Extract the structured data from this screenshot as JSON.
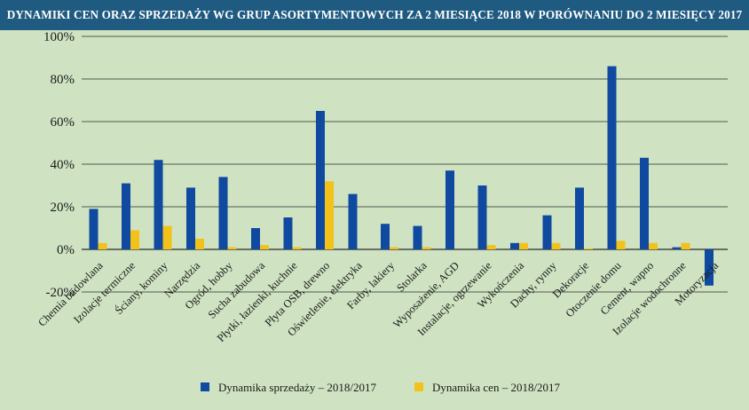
{
  "chart_data": {
    "type": "bar",
    "title": "DYNAMIKI CEN ORAZ SPRZEDAŻY WG GRUP ASORTYMENTOWYCH ZA 2 MIESIĄCE 2018 W PORÓWNANIU DO 2 MIESIĘCY 2017",
    "categories": [
      "Chemia budowlana",
      "Izolacje termiczne",
      "Ściany, kominy",
      "Narzędzia",
      "Ogród, hobby",
      "Sucha zabudowa",
      "Płytki, łazienki, kuchnie",
      "Płyta OSB, drewno",
      "Oświetlenie, elektryka",
      "Farby, lakiery",
      "Stolarka",
      "Wyposażenie, AGD",
      "Instalacje, ogrzewanie",
      "Wykończenia",
      "Dachy, rynny",
      "Dekoracje",
      "Otoczenie domu",
      "Cement, wapno",
      "Izolacje wodochronne",
      "Motoryzacja"
    ],
    "series": [
      {
        "name": "Dynamika sprzedaży – 2018/2017",
        "color": "#0f4aa0",
        "values": [
          19,
          31,
          42,
          29,
          34,
          10,
          15,
          65,
          26,
          12,
          11,
          37,
          30,
          3,
          16,
          29,
          86,
          43,
          1,
          -17
        ]
      },
      {
        "name": "Dynamika cen – 2018/2017",
        "color": "#f2c21b",
        "values": [
          3,
          9,
          11,
          5,
          1,
          2,
          1,
          32,
          0,
          1,
          1,
          0,
          2,
          3,
          3,
          0.5,
          4,
          3,
          3,
          0
        ]
      }
    ],
    "ylim": [
      -20,
      100
    ],
    "yticks": [
      100,
      80,
      60,
      40,
      20,
      0,
      -20
    ],
    "ytick_labels": [
      "100%",
      "80%",
      "60%",
      "40%",
      "20%",
      "0%",
      "-20%"
    ],
    "grid": true,
    "legend_position": "bottom"
  }
}
